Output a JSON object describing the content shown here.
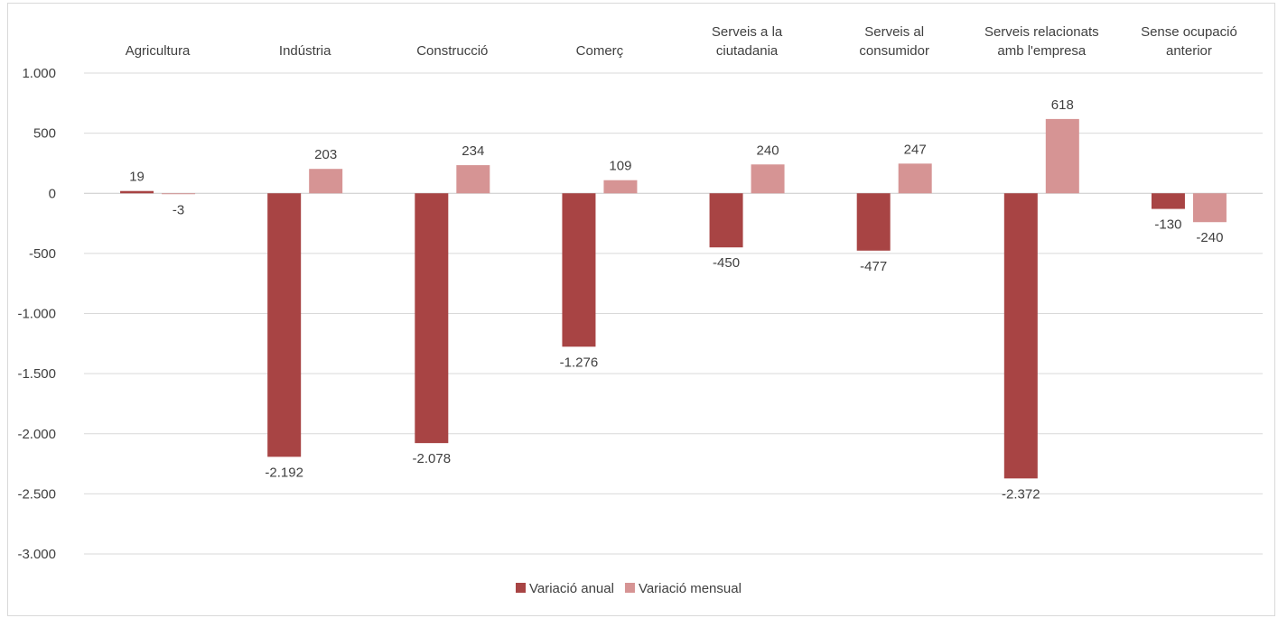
{
  "chart_data": {
    "type": "bar",
    "categories": [
      [
        "Agricultura"
      ],
      [
        "Indústria"
      ],
      [
        "Construcció"
      ],
      [
        "Comerç"
      ],
      [
        "Serveis a la",
        "ciutadania"
      ],
      [
        "Serveis al",
        "consumidor"
      ],
      [
        "Serveis relacionats",
        "amb l'empresa"
      ],
      [
        "Sense ocupació",
        "anterior"
      ]
    ],
    "series": [
      {
        "name": "Variació anual",
        "color": "#a84444",
        "values": [
          19,
          -2192,
          -2078,
          -1276,
          -450,
          -477,
          -2372,
          -130
        ],
        "labels": [
          "19",
          "-2.192",
          "-2.078",
          "-1.276",
          "-450",
          "-477",
          "-2.372",
          "-130"
        ]
      },
      {
        "name": "Variació mensual",
        "color": "#d69494",
        "values": [
          -3,
          203,
          234,
          109,
          240,
          247,
          618,
          -240
        ],
        "labels": [
          "-3",
          "203",
          "234",
          "109",
          "240",
          "247",
          "618",
          "-240"
        ]
      }
    ],
    "ylim": [
      -3000,
      1000
    ],
    "yticks": [
      1000,
      500,
      0,
      -500,
      -1000,
      -1500,
      -2000,
      -2500,
      -3000
    ],
    "ytick_labels": [
      "1.000",
      "500",
      "0",
      "-500",
      "-1.000",
      "-1.500",
      "-2.000",
      "-2.500",
      "-3.000"
    ],
    "grid": true,
    "legend_position": "bottom",
    "title": "",
    "xlabel": "",
    "ylabel": ""
  }
}
